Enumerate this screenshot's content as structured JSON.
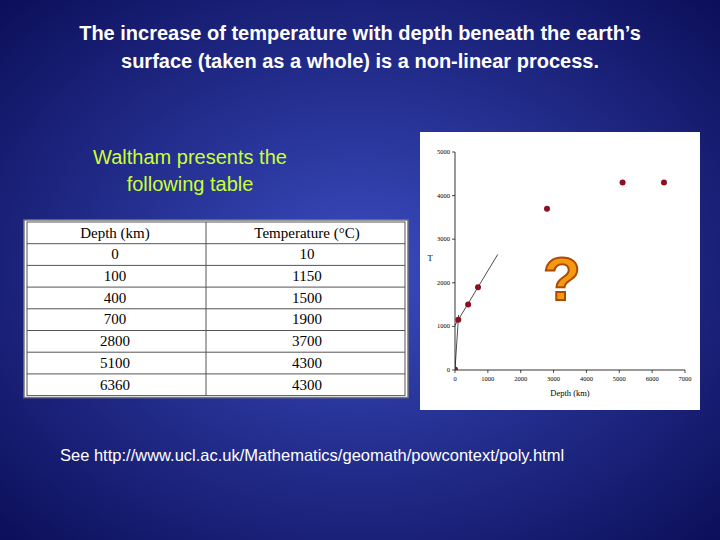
{
  "slide": {
    "title": [
      "The increase of temperature with depth beneath the earth’s",
      "surface (taken as a whole) is a non-linear process."
    ],
    "intro": [
      "Waltham presents the",
      "following table"
    ],
    "table": {
      "header": [
        "Depth (km)",
        "Temperature (°C)"
      ],
      "rows": [
        [
          0,
          10
        ],
        [
          100,
          1150
        ],
        [
          400,
          1500
        ],
        [
          700,
          1900
        ],
        [
          2800,
          3700
        ],
        [
          5100,
          4300
        ],
        [
          6360,
          4300
        ]
      ]
    },
    "footnote": "See http://www.ucl.ac.uk/Mathematics/geomath/powcontext/poly.html"
  },
  "chart_data": {
    "type": "scatter",
    "x": [
      0,
      100,
      400,
      700,
      2800,
      5100,
      6360
    ],
    "values": [
      10,
      1150,
      1500,
      1900,
      3700,
      4300,
      4300
    ],
    "xlim": [
      0,
      7000
    ],
    "ylim": [
      0,
      5000
    ],
    "xticks": [
      0,
      1000,
      2000,
      3000,
      4000,
      5000,
      6000,
      7000
    ],
    "yticks": [
      0,
      1000,
      2000,
      3000,
      4000,
      5000
    ],
    "x_label": "Depth (km)",
    "y_label": "T",
    "annotation": "?",
    "color": "#8b1020",
    "marker": "circle"
  }
}
